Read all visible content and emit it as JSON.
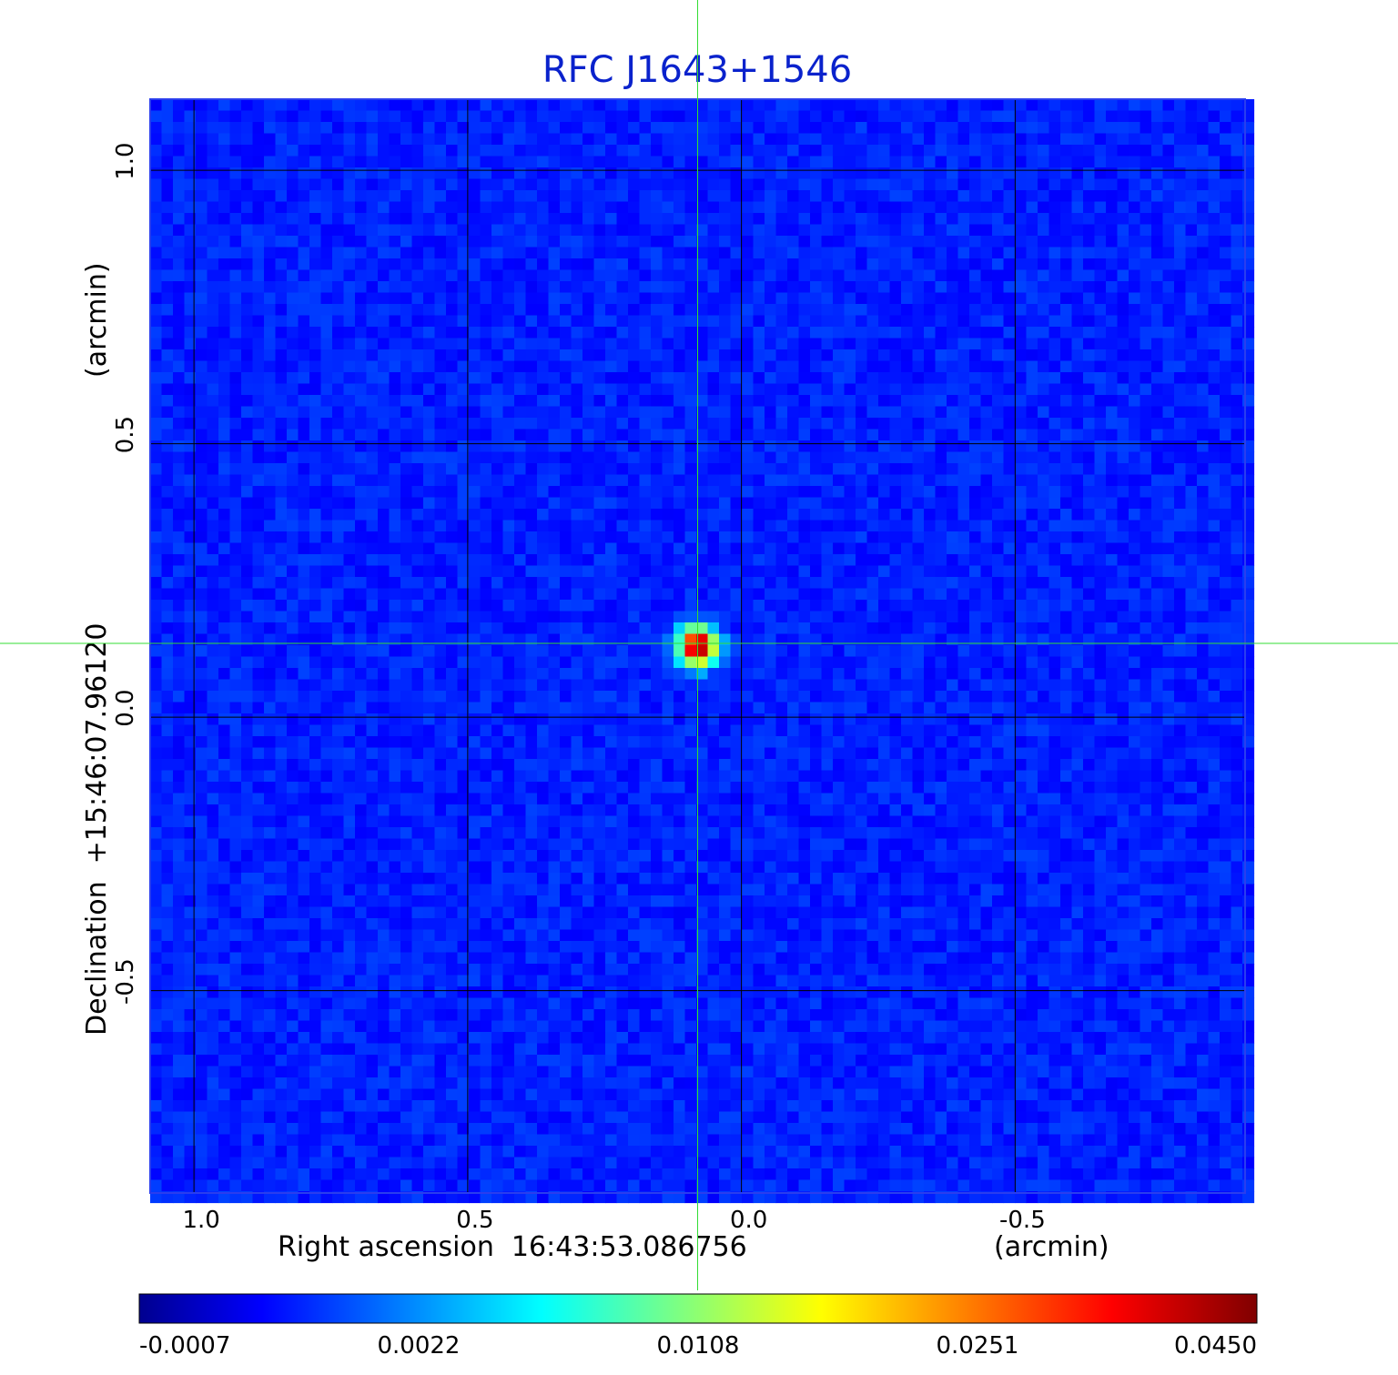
{
  "chart_data": {
    "type": "heatmap",
    "title": "RFC J1643+1546",
    "xlabel": "Right ascension  16:43:53.086756",
    "xunit": "(arcmin)",
    "ylabel": "Declination  +15:46:07.96120",
    "yunit": "(arcmin)",
    "xlim": [
      1.08,
      -0.92
    ],
    "ylim": [
      -0.87,
      1.13
    ],
    "x_ticks": [
      "1.0",
      "0.5",
      "0.0",
      "-0.5"
    ],
    "x_tick_values": [
      1.0,
      0.5,
      0.0,
      -0.5
    ],
    "y_ticks": [
      "1.0",
      "0.5",
      "0.0",
      "-0.5"
    ],
    "y_tick_values": [
      1.0,
      0.5,
      0.0,
      -0.5
    ],
    "grid": true,
    "source": {
      "x": 0.08,
      "y": 0.13,
      "peak": 0.045
    },
    "crosshair": {
      "x": 0.08,
      "y": 0.135,
      "color": "#33dd33"
    },
    "colorbar": {
      "ticks": [
        "-0.0007",
        "0.0022",
        "0.0108",
        "0.0251",
        "0.0450"
      ],
      "colormap": "jet"
    },
    "colors": {
      "title": "#0a22cc",
      "background_map": "#1a3cf0",
      "grid": "#000000",
      "crosshair": "#33dd33"
    }
  }
}
